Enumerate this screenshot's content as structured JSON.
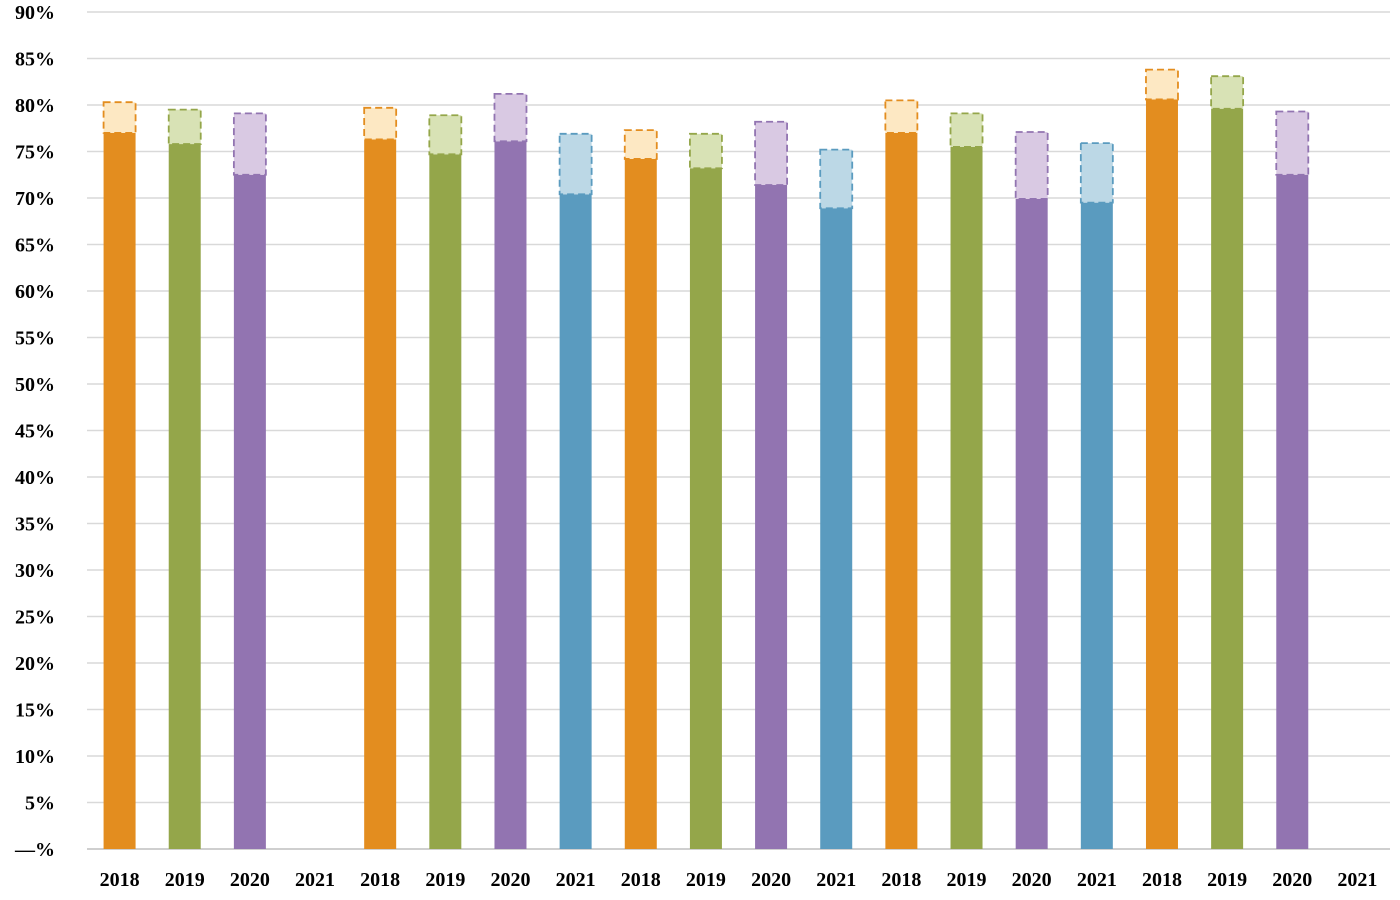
{
  "chart_data": {
    "type": "bar",
    "stacked": true,
    "title": "",
    "xlabel": "",
    "ylabel": "",
    "ylim": [
      0,
      90
    ],
    "y_ticks": [
      "—%",
      "5%",
      "10%",
      "15%",
      "20%",
      "25%",
      "30%",
      "35%",
      "40%",
      "45%",
      "50%",
      "55%",
      "60%",
      "65%",
      "70%",
      "75%",
      "80%",
      "85%",
      "90%"
    ],
    "grid": true,
    "legend": "none",
    "categories": [
      "2018",
      "2019",
      "2020",
      "2021",
      "2018",
      "2019",
      "2020",
      "2021",
      "2018",
      "2019",
      "2020",
      "2021",
      "2018",
      "2019",
      "2020",
      "2021",
      "2018",
      "2019",
      "2020",
      "2021"
    ],
    "series": [
      {
        "role": "base",
        "values": [
          77.0,
          75.8,
          72.5,
          null,
          76.3,
          74.7,
          76.1,
          70.4,
          74.2,
          73.2,
          71.4,
          68.9,
          77.0,
          75.5,
          69.9,
          69.5,
          80.6,
          79.6,
          72.5,
          null
        ]
      },
      {
        "role": "increment",
        "style": "dashed-outline-light-fill",
        "values": [
          3.3,
          3.7,
          6.6,
          null,
          3.4,
          4.2,
          5.1,
          6.5,
          3.1,
          3.7,
          6.8,
          6.3,
          3.5,
          3.6,
          7.2,
          6.4,
          3.2,
          3.5,
          6.8,
          null
        ]
      }
    ],
    "colors": {
      "2018": {
        "solid": "#e38d1f",
        "light": "#fde8c3",
        "outline": "#e38d1f"
      },
      "2019": {
        "solid": "#94a64a",
        "light": "#d8e2b5",
        "outline": "#94a64a"
      },
      "2020": {
        "solid": "#9274b1",
        "light": "#d9c9e3",
        "outline": "#9274b1"
      },
      "2021": {
        "solid": "#5a9bbf",
        "light": "#bcd8e6",
        "outline": "#5a9bbf"
      }
    }
  }
}
